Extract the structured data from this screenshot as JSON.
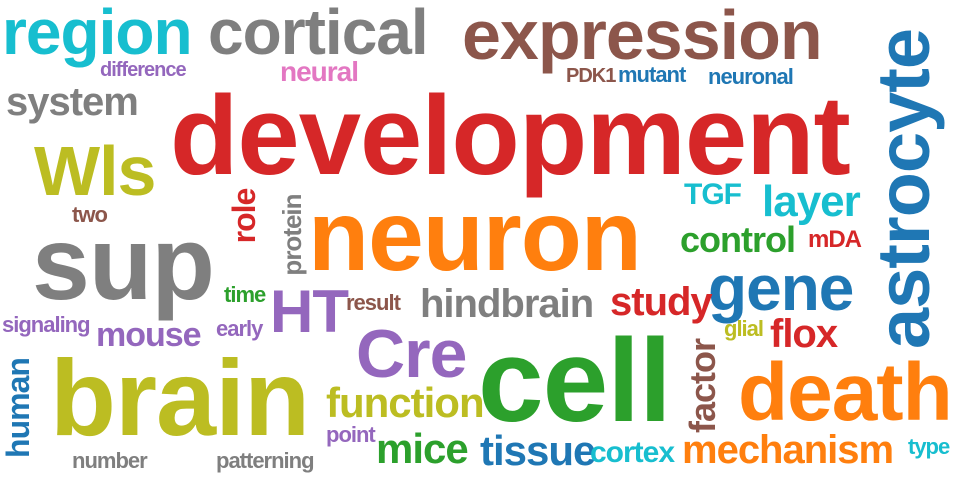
{
  "colors": {
    "red": "#d62728",
    "orange": "#ff7f0e",
    "green": "#2ca02c",
    "blue": "#1f77b4",
    "gray": "#7f7f7f",
    "olive": "#bcbd22",
    "cyan": "#17becf",
    "purple": "#9467bd",
    "brown": "#8c564b",
    "pink": "#e377c2"
  },
  "words": {
    "development": "development",
    "neuron": "neuron",
    "cell": "cell",
    "brain": "brain",
    "sup": "sup",
    "astrocyte": "astrocyte",
    "expression": "expression",
    "region": "region",
    "cortical": "cortical",
    "death": "death",
    "wls": "Wls",
    "cre": "Cre",
    "gene": "gene",
    "ht": "HT",
    "mechanism": "mechanism",
    "hindbrain": "hindbrain",
    "function": "function",
    "study": "study",
    "mice": "mice",
    "tissue": "tissue",
    "flox": "flox",
    "system": "system",
    "layer": "layer",
    "control": "control",
    "mouse": "mouse",
    "factor": "factor",
    "human": "human",
    "cortex": "cortex",
    "neural": "neural",
    "role": "role",
    "protein": "protein",
    "difference": "difference",
    "pdk1": "PDK1",
    "mutant": "mutant",
    "neuronal": "neuronal",
    "tgf": "TGF",
    "mda": "mDA",
    "two": "two",
    "time": "time",
    "early": "early",
    "result": "result",
    "signaling": "signaling",
    "glial": "glial",
    "point": "point",
    "number": "number",
    "patterning": "patterning",
    "type": "type"
  }
}
